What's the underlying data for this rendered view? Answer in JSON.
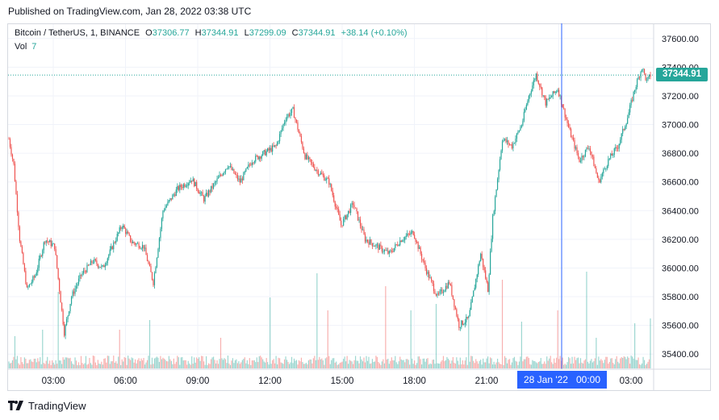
{
  "published": "Published on TradingView.com, Jan 28, 2022 03:38 UTC",
  "legend": {
    "symbol": "Bitcoin / TetherUS, 1, BINANCE",
    "o_label": "O",
    "o": "37306.77",
    "h_label": "H",
    "h": "37344.91",
    "l_label": "L",
    "l": "37299.09",
    "c_label": "C",
    "c": "37344.91",
    "change": "+38.14 (+0.10%)",
    "vol_label": "Vol",
    "vol": "7"
  },
  "last_price_tag": "37344.91",
  "crosshair_date": {
    "date": "28 Jan '22",
    "time": "00:00"
  },
  "brand": "TradingView",
  "colors": {
    "up": "#26a69a",
    "down": "#ef5350",
    "crosshair": "#2962ff",
    "grid": "#f0f3fa"
  },
  "chart_data": {
    "type": "candlestick",
    "y_ticks": [
      35400,
      35600,
      35800,
      36000,
      36200,
      36400,
      36600,
      36800,
      37000,
      37200,
      37400,
      37600
    ],
    "y_tick_labels": [
      "35400.00",
      "35600.00",
      "35800.00",
      "36000.00",
      "36200.00",
      "36400.00",
      "36600.00",
      "36800.00",
      "37000.00",
      "37200.00",
      "37400.00",
      "37600.00"
    ],
    "x_tick_labels": [
      "03:00",
      "06:00",
      "09:00",
      "12:00",
      "15:00",
      "18:00",
      "21:00",
      "00:00",
      "03:00"
    ],
    "ylim": [
      35300,
      37700
    ],
    "last_price": 37344.91,
    "price_path": [
      [
        0,
        36900
      ],
      [
        4,
        36720
      ],
      [
        9,
        36200
      ],
      [
        15,
        35850
      ],
      [
        22,
        35950
      ],
      [
        30,
        36200
      ],
      [
        38,
        36150
      ],
      [
        46,
        35550
      ],
      [
        52,
        35800
      ],
      [
        60,
        35950
      ],
      [
        70,
        36050
      ],
      [
        78,
        36000
      ],
      [
        86,
        36150
      ],
      [
        94,
        36300
      ],
      [
        102,
        36180
      ],
      [
        112,
        36150
      ],
      [
        120,
        35900
      ],
      [
        128,
        36400
      ],
      [
        140,
        36550
      ],
      [
        152,
        36620
      ],
      [
        162,
        36480
      ],
      [
        172,
        36600
      ],
      [
        182,
        36720
      ],
      [
        192,
        36600
      ],
      [
        202,
        36750
      ],
      [
        212,
        36800
      ],
      [
        222,
        36850
      ],
      [
        230,
        37050
      ],
      [
        236,
        37100
      ],
      [
        246,
        36780
      ],
      [
        256,
        36680
      ],
      [
        266,
        36600
      ],
      [
        276,
        36300
      ],
      [
        286,
        36450
      ],
      [
        296,
        36200
      ],
      [
        306,
        36150
      ],
      [
        316,
        36100
      ],
      [
        326,
        36200
      ],
      [
        336,
        36250
      ],
      [
        346,
        36000
      ],
      [
        356,
        35800
      ],
      [
        366,
        35900
      ],
      [
        374,
        35600
      ],
      [
        382,
        35650
      ],
      [
        392,
        36100
      ],
      [
        398,
        35850
      ],
      [
        402,
        36350
      ],
      [
        410,
        36900
      ],
      [
        418,
        36850
      ],
      [
        426,
        37000
      ],
      [
        432,
        37200
      ],
      [
        438,
        37350
      ],
      [
        446,
        37150
      ],
      [
        456,
        37250
      ],
      [
        466,
        36950
      ],
      [
        474,
        36750
      ],
      [
        482,
        36850
      ],
      [
        490,
        36600
      ],
      [
        498,
        36750
      ],
      [
        506,
        36850
      ],
      [
        514,
        37050
      ],
      [
        520,
        37250
      ],
      [
        526,
        37400
      ],
      [
        530,
        37300
      ],
      [
        533,
        37344
      ]
    ],
    "candles_per_hour": 21,
    "volume_spikes": [
      [
        5,
        40
      ],
      [
        28,
        48
      ],
      [
        41,
        95
      ],
      [
        92,
        48
      ],
      [
        117,
        60
      ],
      [
        176,
        38
      ],
      [
        217,
        88
      ],
      [
        256,
        118
      ],
      [
        265,
        72
      ],
      [
        313,
        102
      ],
      [
        334,
        72
      ],
      [
        355,
        80
      ],
      [
        382,
        64
      ],
      [
        410,
        110
      ],
      [
        426,
        58
      ],
      [
        456,
        72
      ],
      [
        480,
        120
      ],
      [
        488,
        38
      ],
      [
        520,
        56
      ],
      [
        533,
        62
      ]
    ]
  }
}
